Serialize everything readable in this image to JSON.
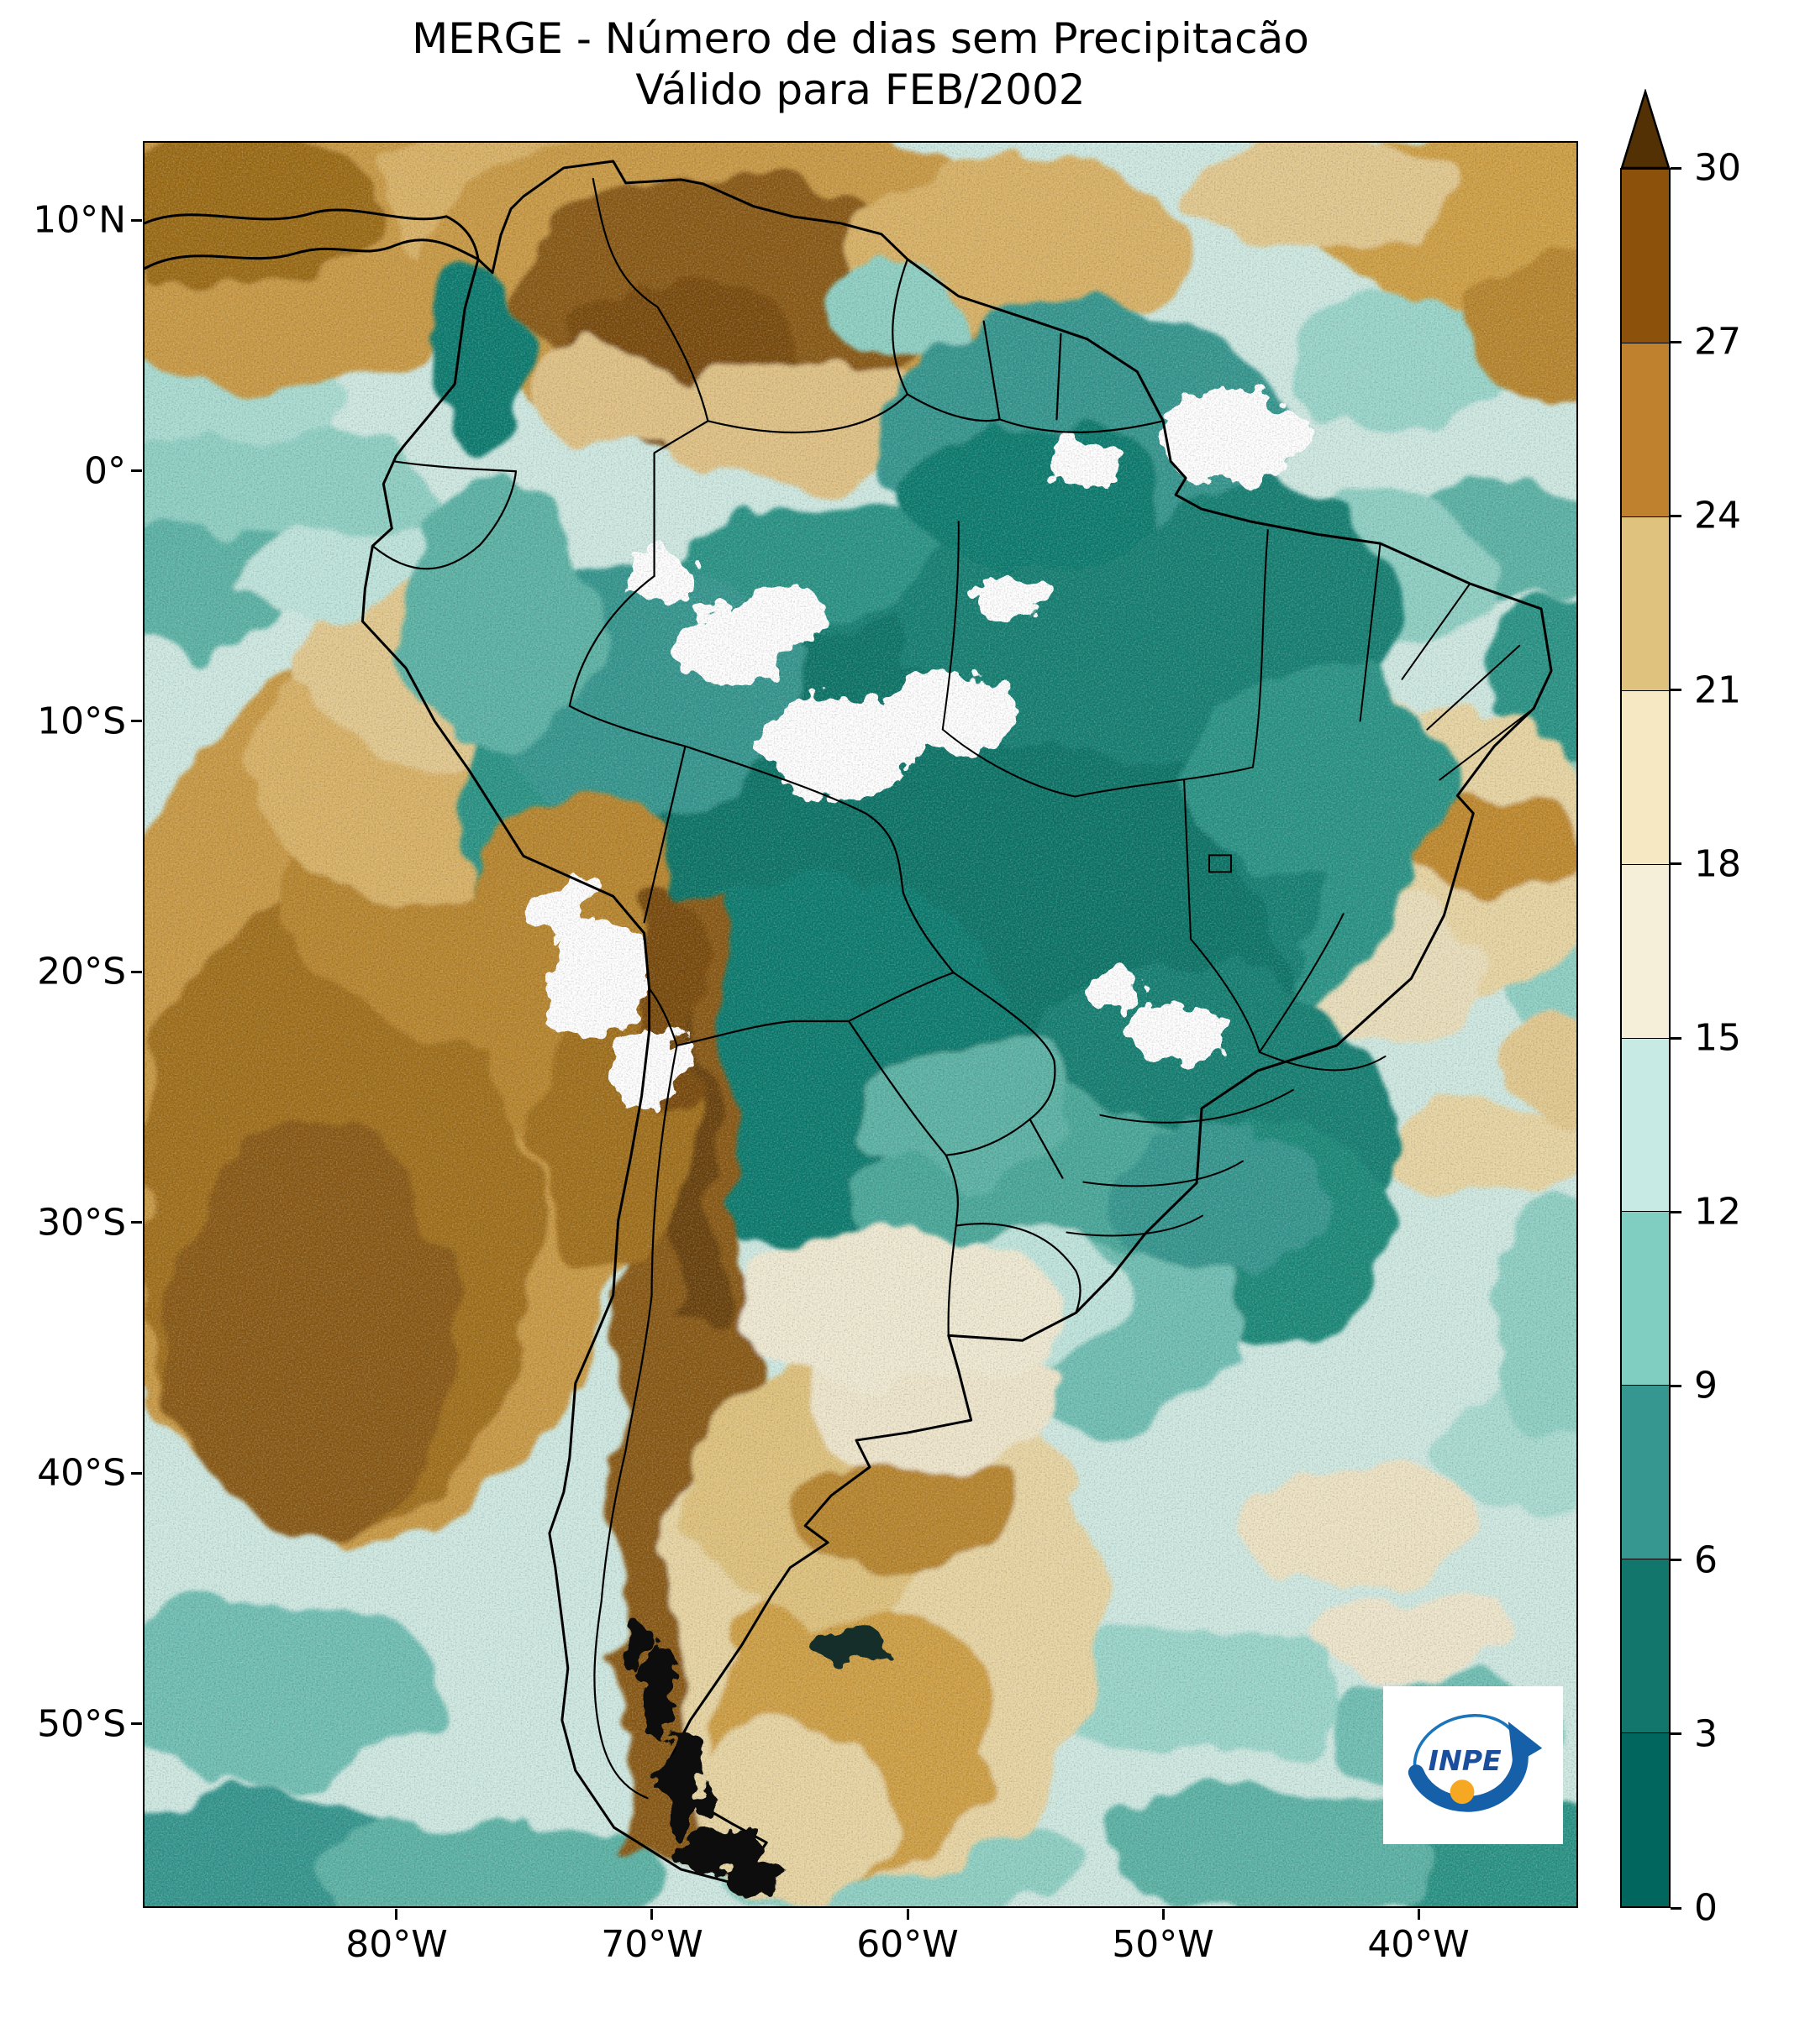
{
  "title": {
    "line1": "MERGE - Número de dias sem Precipitacão",
    "line2": "Válido para FEB/2002"
  },
  "axes": {
    "y_tick_labels": [
      "10°N",
      "0°",
      "10°S",
      "20°S",
      "30°S",
      "40°S",
      "50°S"
    ],
    "x_tick_labels": [
      "80°W",
      "70°W",
      "60°W",
      "50°W",
      "40°W"
    ]
  },
  "colorbar": {
    "range": [
      0,
      30
    ],
    "tick_labels": [
      "0",
      "3",
      "6",
      "9",
      "12",
      "15",
      "18",
      "21",
      "24",
      "27",
      "30"
    ],
    "segment_colors": [
      "#01665e",
      "#12766c",
      "#35978f",
      "#80cdc1",
      "#c7eae5",
      "#f5efd9",
      "#f6e8c3",
      "#dfc27d",
      "#bf812d",
      "#8c510a"
    ],
    "extend_color": "#543005"
  },
  "logo": {
    "text": "INPE"
  }
}
